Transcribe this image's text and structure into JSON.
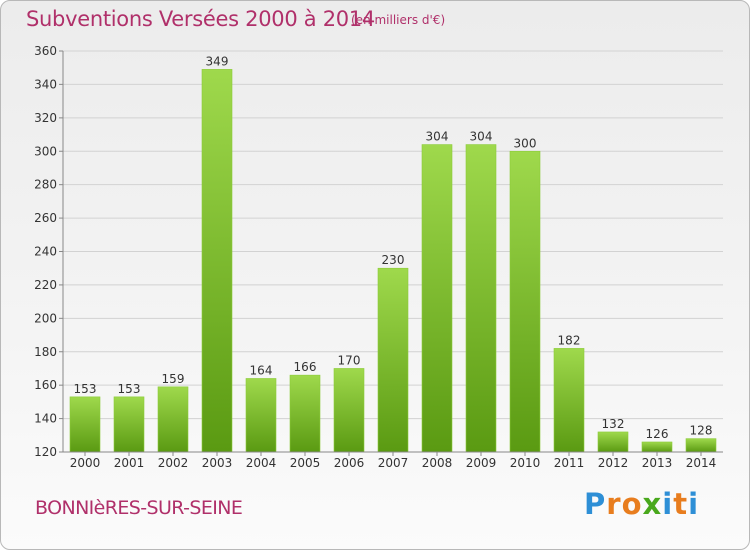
{
  "header": {
    "title": "Subventions Versées 2000 à 2014",
    "unit_note": "(en milliers d'€)"
  },
  "footer": {
    "town": "BONNIèRES-SUR-SEINE",
    "brand": "Proxiti",
    "brand_colors": [
      "#2e8fd6",
      "#e87d1e",
      "#e87d1e",
      "#49a81c",
      "#2e8fd6",
      "#e87d1e"
    ]
  },
  "colors": {
    "bar_top": "#9fd94c",
    "bar_bottom": "#5a9a12",
    "text_accent": "#b0306a"
  },
  "chart_data": {
    "type": "bar",
    "categories": [
      "2000",
      "2001",
      "2002",
      "2003",
      "2004",
      "2005",
      "2006",
      "2007",
      "2008",
      "2009",
      "2010",
      "2011",
      "2012",
      "2013",
      "2014"
    ],
    "values": [
      153,
      153,
      159,
      349,
      164,
      166,
      170,
      230,
      304,
      304,
      300,
      182,
      132,
      126,
      128
    ],
    "title": "Subventions Versées 2000 à 2014",
    "subtitle": "(en milliers d'€)",
    "xlabel": "",
    "ylabel": "",
    "ylim": [
      120,
      360
    ],
    "yticks": [
      120,
      140,
      160,
      180,
      200,
      220,
      240,
      260,
      280,
      300,
      320,
      340,
      360
    ],
    "grid": true
  }
}
